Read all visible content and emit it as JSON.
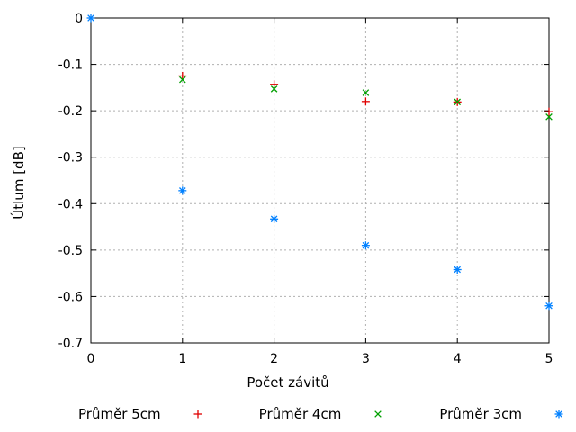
{
  "chart_data": {
    "type": "scatter",
    "title": "",
    "xlabel": "Počet závitů",
    "ylabel": "Útlum [dB]",
    "xlim": [
      0,
      5
    ],
    "ylim": [
      -0.7,
      0
    ],
    "grid": true,
    "legend_position": "bottom-center",
    "background_color": "#ffffff",
    "grid_color": "#b0b0b0",
    "axis_color": "#000000",
    "xticks": [
      {
        "v": 0,
        "label": "0"
      },
      {
        "v": 1,
        "label": "1"
      },
      {
        "v": 2,
        "label": "2"
      },
      {
        "v": 3,
        "label": "3"
      },
      {
        "v": 4,
        "label": "4"
      },
      {
        "v": 5,
        "label": "5"
      }
    ],
    "yticks": [
      {
        "v": 0,
        "label": "0"
      },
      {
        "v": -0.1,
        "label": "-0.1"
      },
      {
        "v": -0.2,
        "label": "-0.2"
      },
      {
        "v": -0.3,
        "label": "-0.3"
      },
      {
        "v": -0.4,
        "label": "-0.4"
      },
      {
        "v": -0.5,
        "label": "-0.5"
      },
      {
        "v": -0.6,
        "label": "-0.6"
      },
      {
        "v": -0.7,
        "label": "-0.7"
      }
    ],
    "series": [
      {
        "name": "Průměr 5cm",
        "marker": "plus",
        "color": "#e00000",
        "points": [
          [
            1,
            -0.125
          ],
          [
            2,
            -0.143
          ],
          [
            3,
            -0.18
          ],
          [
            4,
            -0.181
          ],
          [
            5,
            -0.202
          ]
        ]
      },
      {
        "name": "Průměr 4cm",
        "marker": "cross",
        "color": "#00a000",
        "points": [
          [
            1,
            -0.133
          ],
          [
            2,
            -0.153
          ],
          [
            3,
            -0.161
          ],
          [
            4,
            -0.181
          ],
          [
            5,
            -0.213
          ]
        ]
      },
      {
        "name": "Průměr 3cm",
        "marker": "asterisk",
        "color": "#0080ff",
        "points": [
          [
            0,
            0
          ],
          [
            1,
            -0.372
          ],
          [
            2,
            -0.433
          ],
          [
            3,
            -0.49
          ],
          [
            4,
            -0.542
          ],
          [
            5,
            -0.62
          ]
        ]
      }
    ]
  }
}
